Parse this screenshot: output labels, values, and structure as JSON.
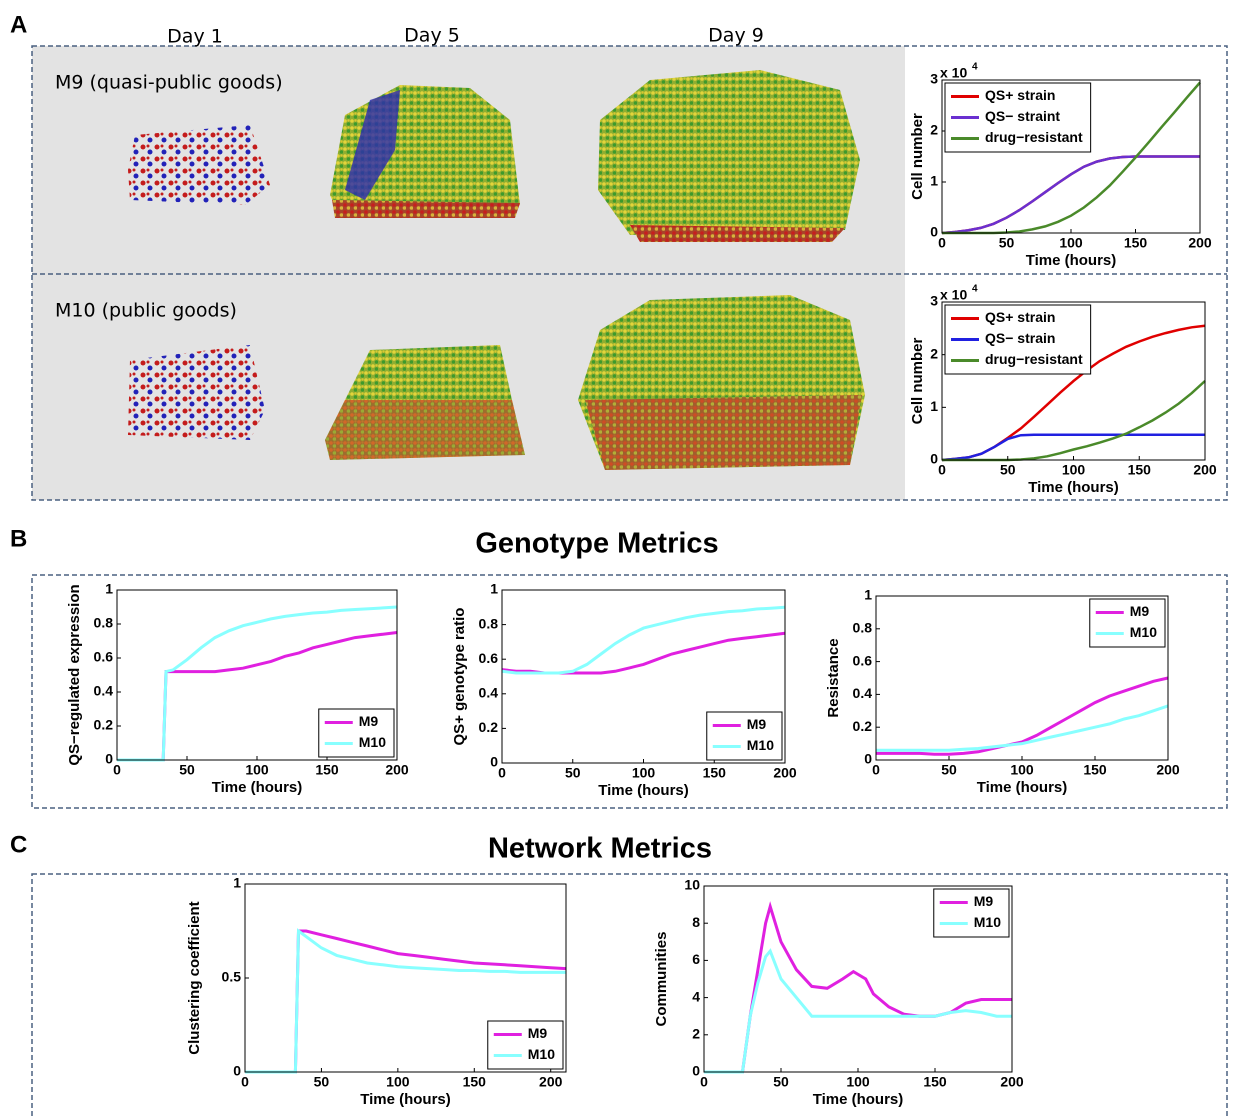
{
  "figure": {
    "panel_labels": [
      "A",
      "B",
      "C"
    ],
    "days": [
      "Day 1",
      "Day 5",
      "Day 9"
    ],
    "rows": [
      "M9 (quasi-public goods)",
      "M10 (public goods)"
    ],
    "section_titles": [
      "Genotype Metrics",
      "Network Metrics"
    ]
  },
  "chart_data": [
    {
      "type": "line",
      "xlabel": "Time (hours)",
      "ylabel": "Cell number",
      "y_scale_label": {
        "base": "x 10",
        "exponent": "4"
      },
      "x": [
        0,
        10,
        20,
        30,
        40,
        50,
        60,
        70,
        80,
        90,
        100,
        110,
        120,
        130,
        140,
        150,
        160,
        170,
        180,
        190,
        200
      ],
      "series": [
        {
          "name": "QS+ strain",
          "color": "#e00000",
          "values": [
            0,
            0.02,
            0.05,
            0.1,
            0.18,
            0.3,
            0.45,
            0.62,
            0.8,
            0.98,
            1.15,
            1.3,
            1.4,
            1.46,
            1.49,
            1.5,
            1.5,
            1.5,
            1.5,
            1.5,
            1.5
          ]
        },
        {
          "name": "QS− straint",
          "color": "#6a30d0",
          "values": [
            0,
            0.02,
            0.05,
            0.1,
            0.18,
            0.3,
            0.45,
            0.62,
            0.8,
            0.98,
            1.15,
            1.3,
            1.4,
            1.46,
            1.49,
            1.5,
            1.5,
            1.5,
            1.5,
            1.5,
            1.5
          ]
        },
        {
          "name": "drug−resistant",
          "color": "#4a8a2a",
          "values": [
            0,
            0,
            0,
            0,
            0,
            0.01,
            0.03,
            0.07,
            0.13,
            0.22,
            0.34,
            0.5,
            0.7,
            0.93,
            1.2,
            1.48,
            1.77,
            2.07,
            2.36,
            2.66,
            2.95
          ]
        }
      ],
      "xlim": [
        0,
        200
      ],
      "xticks": [
        0,
        50,
        100,
        150,
        200
      ],
      "ylim": [
        0,
        3
      ],
      "yticks": [
        0,
        1,
        2,
        3
      ],
      "legend": "upper left"
    },
    {
      "type": "line",
      "xlabel": "Time (hours)",
      "ylabel": "Cell number",
      "y_scale_label": {
        "base": "x 10",
        "exponent": "4"
      },
      "x": [
        0,
        10,
        20,
        30,
        40,
        50,
        60,
        70,
        80,
        90,
        100,
        110,
        120,
        130,
        140,
        150,
        160,
        170,
        180,
        190,
        200
      ],
      "series": [
        {
          "name": "QS+ strain",
          "color": "#e00000",
          "values": [
            0,
            0.02,
            0.05,
            0.12,
            0.25,
            0.42,
            0.6,
            0.82,
            1.05,
            1.28,
            1.5,
            1.7,
            1.88,
            2.02,
            2.15,
            2.25,
            2.34,
            2.41,
            2.47,
            2.52,
            2.55
          ]
        },
        {
          "name": "QS− strain",
          "color": "#2020e0",
          "values": [
            0,
            0.02,
            0.05,
            0.12,
            0.25,
            0.4,
            0.47,
            0.48,
            0.48,
            0.48,
            0.48,
            0.48,
            0.48,
            0.48,
            0.48,
            0.48,
            0.48,
            0.48,
            0.48,
            0.48,
            0.48
          ]
        },
        {
          "name": "drug−resistant",
          "color": "#4a8a2a",
          "values": [
            0,
            0,
            0,
            0,
            0,
            0,
            0.01,
            0.03,
            0.07,
            0.13,
            0.2,
            0.26,
            0.33,
            0.41,
            0.5,
            0.62,
            0.75,
            0.9,
            1.07,
            1.27,
            1.5
          ]
        }
      ],
      "xlim": [
        0,
        200
      ],
      "xticks": [
        0,
        50,
        100,
        150,
        200
      ],
      "ylim": [
        0,
        3
      ],
      "yticks": [
        0,
        1,
        2,
        3
      ],
      "legend": "upper left"
    },
    {
      "type": "line",
      "xlabel": "Time (hours)",
      "ylabel": "QS−regulated expression",
      "x": [
        0,
        10,
        20,
        30,
        33,
        35,
        40,
        50,
        60,
        70,
        80,
        90,
        100,
        110,
        120,
        130,
        140,
        150,
        160,
        170,
        180,
        190,
        200
      ],
      "series": [
        {
          "name": "M9",
          "color": "#e020e0",
          "values": [
            0,
            0,
            0,
            0,
            0,
            0.52,
            0.52,
            0.52,
            0.52,
            0.52,
            0.53,
            0.54,
            0.56,
            0.58,
            0.61,
            0.63,
            0.66,
            0.68,
            0.7,
            0.72,
            0.73,
            0.74,
            0.75
          ]
        },
        {
          "name": "M10",
          "color": "#88ffff",
          "values": [
            0,
            0,
            0,
            0,
            0,
            0.52,
            0.53,
            0.59,
            0.66,
            0.72,
            0.76,
            0.79,
            0.81,
            0.83,
            0.845,
            0.855,
            0.865,
            0.87,
            0.88,
            0.885,
            0.89,
            0.895,
            0.9
          ]
        }
      ],
      "xlim": [
        0,
        200
      ],
      "xticks": [
        0,
        50,
        100,
        150,
        200
      ],
      "ylim": [
        0,
        1
      ],
      "yticks": [
        0,
        0.2,
        0.4,
        0.6,
        0.8,
        1
      ],
      "legend": "lower right"
    },
    {
      "type": "line",
      "xlabel": "Time (hours)",
      "ylabel": "QS+ genotype ratio",
      "x": [
        0,
        10,
        20,
        30,
        40,
        50,
        60,
        70,
        80,
        90,
        100,
        110,
        120,
        130,
        140,
        150,
        160,
        170,
        180,
        190,
        200
      ],
      "series": [
        {
          "name": "M9",
          "color": "#e020e0",
          "values": [
            0.54,
            0.53,
            0.53,
            0.52,
            0.52,
            0.52,
            0.52,
            0.52,
            0.53,
            0.55,
            0.57,
            0.6,
            0.63,
            0.65,
            0.67,
            0.69,
            0.71,
            0.72,
            0.73,
            0.74,
            0.75
          ]
        },
        {
          "name": "M10",
          "color": "#88ffff",
          "values": [
            0.53,
            0.52,
            0.52,
            0.52,
            0.52,
            0.53,
            0.57,
            0.63,
            0.69,
            0.74,
            0.78,
            0.8,
            0.82,
            0.84,
            0.855,
            0.865,
            0.875,
            0.88,
            0.89,
            0.895,
            0.9
          ]
        }
      ],
      "xlim": [
        0,
        200
      ],
      "xticks": [
        0,
        50,
        100,
        150,
        200
      ],
      "ylim": [
        0,
        1
      ],
      "yticks": [
        0,
        0.2,
        0.4,
        0.6,
        0.8,
        1
      ],
      "legend": "lower right"
    },
    {
      "type": "line",
      "xlabel": "Time (hours)",
      "ylabel": "Resistance",
      "x": [
        0,
        10,
        20,
        30,
        40,
        50,
        60,
        70,
        80,
        90,
        100,
        110,
        120,
        130,
        140,
        150,
        160,
        170,
        180,
        190,
        200
      ],
      "series": [
        {
          "name": "M9",
          "color": "#e020e0",
          "values": [
            0.04,
            0.04,
            0.04,
            0.04,
            0.035,
            0.035,
            0.04,
            0.05,
            0.07,
            0.09,
            0.11,
            0.15,
            0.2,
            0.25,
            0.3,
            0.35,
            0.39,
            0.42,
            0.45,
            0.48,
            0.5
          ]
        },
        {
          "name": "M10",
          "color": "#88ffff",
          "values": [
            0.06,
            0.06,
            0.06,
            0.06,
            0.06,
            0.06,
            0.065,
            0.07,
            0.08,
            0.09,
            0.1,
            0.12,
            0.14,
            0.16,
            0.18,
            0.2,
            0.22,
            0.25,
            0.27,
            0.3,
            0.33
          ]
        }
      ],
      "xlim": [
        0,
        200
      ],
      "xticks": [
        0,
        50,
        100,
        150,
        200
      ],
      "ylim": [
        0,
        1
      ],
      "yticks": [
        0,
        0.2,
        0.4,
        0.6,
        0.8,
        1
      ],
      "legend": "upper right"
    },
    {
      "type": "line",
      "xlabel": "Time (hours)",
      "ylabel": "Clustering coefficient",
      "x": [
        0,
        10,
        20,
        30,
        33,
        35,
        40,
        50,
        60,
        70,
        80,
        90,
        100,
        110,
        120,
        130,
        140,
        150,
        160,
        170,
        180,
        190,
        200,
        210
      ],
      "series": [
        {
          "name": "M9",
          "color": "#e020e0",
          "values": [
            0,
            0,
            0,
            0,
            0,
            0.75,
            0.75,
            0.73,
            0.71,
            0.69,
            0.67,
            0.65,
            0.63,
            0.62,
            0.61,
            0.6,
            0.59,
            0.58,
            0.575,
            0.57,
            0.565,
            0.56,
            0.555,
            0.55
          ]
        },
        {
          "name": "M10",
          "color": "#88ffff",
          "values": [
            0,
            0,
            0,
            0,
            0,
            0.75,
            0.72,
            0.66,
            0.62,
            0.6,
            0.58,
            0.57,
            0.56,
            0.555,
            0.55,
            0.545,
            0.54,
            0.54,
            0.535,
            0.535,
            0.53,
            0.53,
            0.53,
            0.53
          ]
        }
      ],
      "xlim": [
        0,
        210
      ],
      "xticks": [
        0,
        50,
        100,
        150,
        200
      ],
      "ylim": [
        0,
        1
      ],
      "yticks": [
        0,
        0.5,
        1
      ],
      "legend": "lower right"
    },
    {
      "type": "line",
      "xlabel": "Time (hours)",
      "ylabel": "Communities",
      "x": [
        0,
        10,
        20,
        25,
        30,
        35,
        40,
        43,
        50,
        60,
        70,
        80,
        90,
        97,
        105,
        110,
        120,
        130,
        140,
        150,
        160,
        170,
        180,
        190,
        200
      ],
      "series": [
        {
          "name": "M9",
          "color": "#e020e0",
          "values": [
            0,
            0,
            0,
            0,
            3,
            5.5,
            8,
            8.9,
            7,
            5.5,
            4.6,
            4.5,
            5,
            5.4,
            5,
            4.2,
            3.5,
            3.1,
            3,
            3,
            3.2,
            3.7,
            3.9,
            3.9,
            3.9
          ]
        },
        {
          "name": "M10",
          "color": "#88ffff",
          "values": [
            0,
            0,
            0,
            0,
            3,
            4.8,
            6.2,
            6.5,
            5,
            4,
            3,
            3,
            3,
            3,
            3,
            3,
            3,
            3,
            3,
            3,
            3.2,
            3.3,
            3.2,
            3,
            3
          ]
        }
      ],
      "xlim": [
        0,
        200
      ],
      "xticks": [
        0,
        50,
        100,
        150,
        200
      ],
      "ylim": [
        0,
        10
      ],
      "yticks": [
        0,
        2,
        4,
        6,
        8,
        10
      ],
      "legend": "upper right"
    }
  ]
}
